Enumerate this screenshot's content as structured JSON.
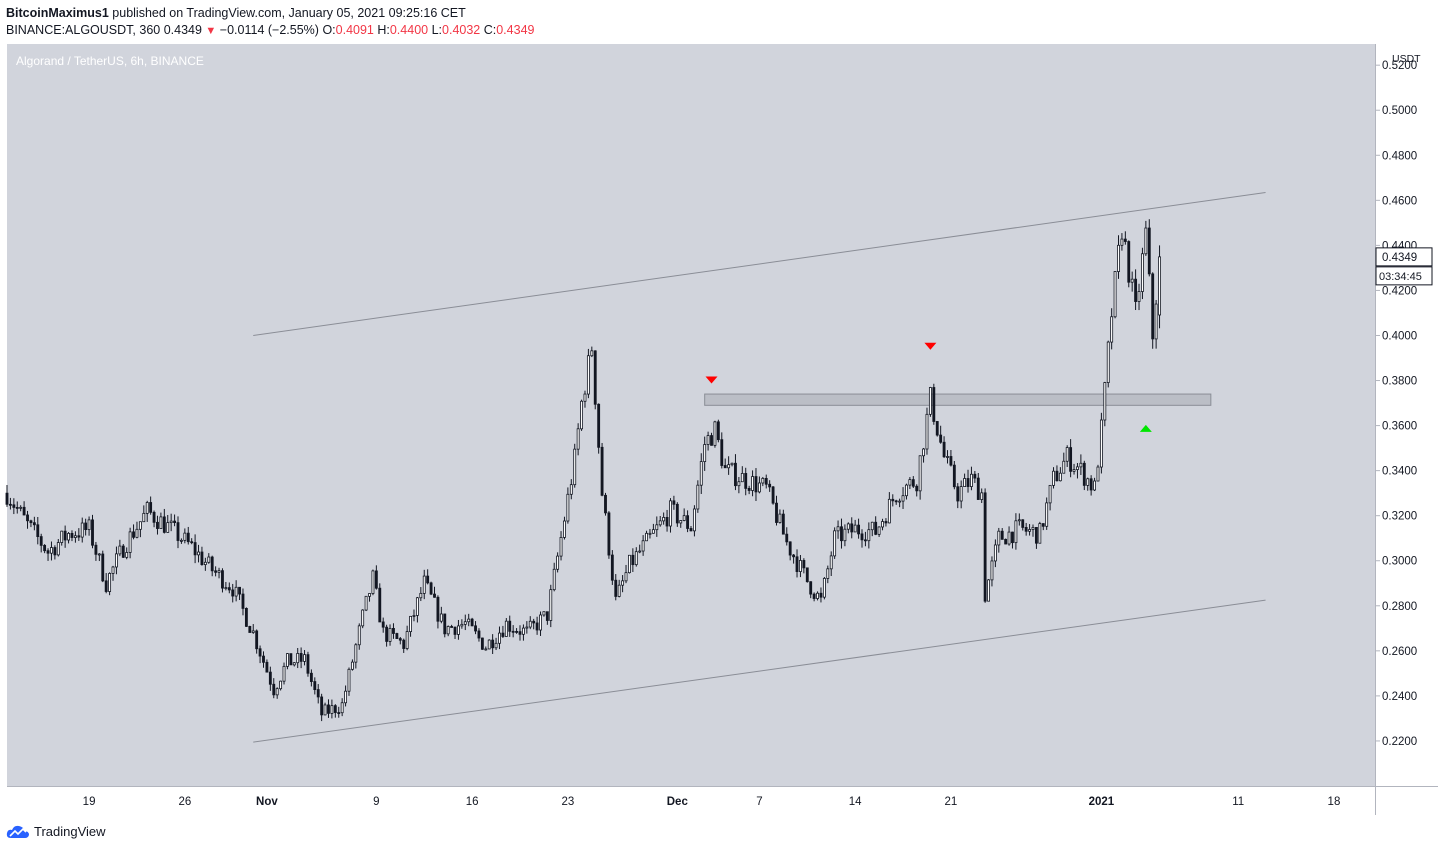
{
  "header": {
    "author": "BitcoinMaximus1",
    "published_text": " published on TradingView.com, January 05, 2021 09:25:16 CET",
    "symbol": "BINANCE:ALGOUSDT, 360",
    "last": "0.4349",
    "change": "−0.0114 (−2.55%)",
    "o_label": "O:",
    "o_value": "0.4091",
    "h_label": "H:",
    "h_value": "0.4400",
    "l_label": "L:",
    "l_value": "0.4032",
    "c_label": "C:",
    "c_value": "0.4349"
  },
  "chart_title": "Algorand / TetherUS, 6h, BINANCE",
  "footer": {
    "brand": "TradingView"
  },
  "colors": {
    "plot_bg": "#d1d4dc",
    "candle": "#131722",
    "down_marker": "#ff0000",
    "up_marker": "#00e600",
    "neg_text": "#f23645"
  },
  "icons": {
    "brand_logo": "tradingview-cloud-icon",
    "change_arrow": "down-triangle-icon"
  },
  "chart_data": {
    "type": "candlestick",
    "interval": "6h",
    "y_axis": {
      "ticks": [
        "0.2200",
        "0.2400",
        "0.2600",
        "0.2800",
        "0.3000",
        "0.3200",
        "0.3400",
        "0.3600",
        "0.3800",
        "0.4000",
        "0.4200",
        "0.4400",
        "0.4600",
        "0.4800",
        "0.5000",
        "0.5200"
      ],
      "top_label": "USDT",
      "ylim": [
        0.2,
        0.5294
      ]
    },
    "x_axis": {
      "ticks": [
        "19",
        "26",
        "Nov",
        "9",
        "16",
        "23",
        "Dec",
        "7",
        "14",
        "21",
        "2021",
        "11",
        "18"
      ],
      "bold_ticks": [
        "Nov",
        "Dec",
        "2021"
      ],
      "xlim_days": [
        "2020-10-13",
        "2021-01-21"
      ]
    },
    "last_price_label": "0.4349",
    "countdown_label": "03:34:45",
    "close_path": [
      [
        "2020-10-13T00:00",
        0.33
      ],
      [
        "2020-10-14T12:00",
        0.316
      ],
      [
        "2020-10-16T00:00",
        0.304
      ],
      [
        "2020-10-17T12:00",
        0.312
      ],
      [
        "2020-10-19T00:00",
        0.314
      ],
      [
        "2020-10-20T06:00",
        0.29
      ],
      [
        "2020-10-21T12:00",
        0.306
      ],
      [
        "2020-10-23T06:00",
        0.322
      ],
      [
        "2020-10-25T00:00",
        0.314
      ],
      [
        "2020-10-26T12:00",
        0.306
      ],
      [
        "2020-10-28T00:00",
        0.296
      ],
      [
        "2020-10-29T12:00",
        0.288
      ],
      [
        "2020-10-31T00:00",
        0.268
      ],
      [
        "2020-11-01T12:00",
        0.243
      ],
      [
        "2020-11-02T12:00",
        0.255
      ],
      [
        "2020-11-03T18:00",
        0.256
      ],
      [
        "2020-11-05T00:00",
        0.232
      ],
      [
        "2020-11-06T12:00",
        0.236
      ],
      [
        "2020-11-08T00:00",
        0.275
      ],
      [
        "2020-11-08T18:00",
        0.292
      ],
      [
        "2020-11-09T12:00",
        0.268
      ],
      [
        "2020-11-11T00:00",
        0.263
      ],
      [
        "2020-11-12T12:00",
        0.29
      ],
      [
        "2020-11-14T00:00",
        0.27
      ],
      [
        "2020-11-15T12:00",
        0.272
      ],
      [
        "2020-11-17T00:00",
        0.262
      ],
      [
        "2020-11-18T12:00",
        0.272
      ],
      [
        "2020-11-20T00:00",
        0.268
      ],
      [
        "2020-11-21T12:00",
        0.276
      ],
      [
        "2020-11-22T12:00",
        0.31
      ],
      [
        "2020-11-23T12:00",
        0.345
      ],
      [
        "2020-11-24T00:00",
        0.37
      ],
      [
        "2020-11-24T18:00",
        0.395
      ],
      [
        "2020-11-25T12:00",
        0.33
      ],
      [
        "2020-11-26T12:00",
        0.282
      ],
      [
        "2020-11-27T12:00",
        0.298
      ],
      [
        "2020-11-29T00:00",
        0.31
      ],
      [
        "2020-11-30T12:00",
        0.322
      ],
      [
        "2020-12-02T00:00",
        0.315
      ],
      [
        "2020-12-03T00:00",
        0.352
      ],
      [
        "2020-12-03T18:00",
        0.358
      ],
      [
        "2020-12-04T12:00",
        0.34
      ],
      [
        "2020-12-06T00:00",
        0.336
      ],
      [
        "2020-12-07T12:00",
        0.332
      ],
      [
        "2020-12-09T00:00",
        0.308
      ],
      [
        "2020-12-10T12:00",
        0.291
      ],
      [
        "2020-12-11T12:00",
        0.282
      ],
      [
        "2020-12-12T12:00",
        0.31
      ],
      [
        "2020-12-14T00:00",
        0.314
      ],
      [
        "2020-12-15T12:00",
        0.313
      ],
      [
        "2020-12-17T00:00",
        0.33
      ],
      [
        "2020-12-18T12:00",
        0.336
      ],
      [
        "2020-12-19T12:00",
        0.372
      ],
      [
        "2020-12-20T12:00",
        0.346
      ],
      [
        "2020-12-21T12:00",
        0.33
      ],
      [
        "2020-12-22T12:00",
        0.336
      ],
      [
        "2020-12-23T06:00",
        0.33
      ],
      [
        "2020-12-23T12:00",
        0.285
      ],
      [
        "2020-12-24T12:00",
        0.31
      ],
      [
        "2020-12-26T00:00",
        0.314
      ],
      [
        "2020-12-27T12:00",
        0.312
      ],
      [
        "2020-12-28T12:00",
        0.336
      ],
      [
        "2020-12-29T12:00",
        0.346
      ],
      [
        "2020-12-30T12:00",
        0.34
      ],
      [
        "2020-12-31T12:00",
        0.332
      ],
      [
        "2021-01-01T00:00",
        0.358
      ],
      [
        "2021-01-01T18:00",
        0.41
      ],
      [
        "2021-01-02T12:00",
        0.448
      ],
      [
        "2021-01-03T12:00",
        0.41
      ],
      [
        "2021-01-04T06:00",
        0.445
      ],
      [
        "2021-01-04T18:00",
        0.4
      ],
      [
        "2021-01-05T06:00",
        0.435
      ]
    ],
    "last_candle": {
      "o": 0.4091,
      "h": 0.44,
      "l": 0.4032,
      "c": 0.4349
    },
    "channel_upper": [
      [
        "2020-10-31",
        0.4
      ],
      [
        "2021-01-13",
        0.4635
      ]
    ],
    "channel_lower": [
      [
        "2020-10-31",
        0.2195
      ],
      [
        "2021-01-13",
        0.2825
      ]
    ],
    "resistance_zone": {
      "from": "2020-12-03",
      "to": "2021-01-09",
      "low": 0.369,
      "high": 0.374
    },
    "markers": [
      {
        "type": "down",
        "date": "2020-12-03T12:00",
        "price": 0.38
      },
      {
        "type": "down",
        "date": "2020-12-19T12:00",
        "price": 0.395
      },
      {
        "type": "up",
        "date": "2021-01-04T06:00",
        "price": 0.359
      }
    ]
  }
}
